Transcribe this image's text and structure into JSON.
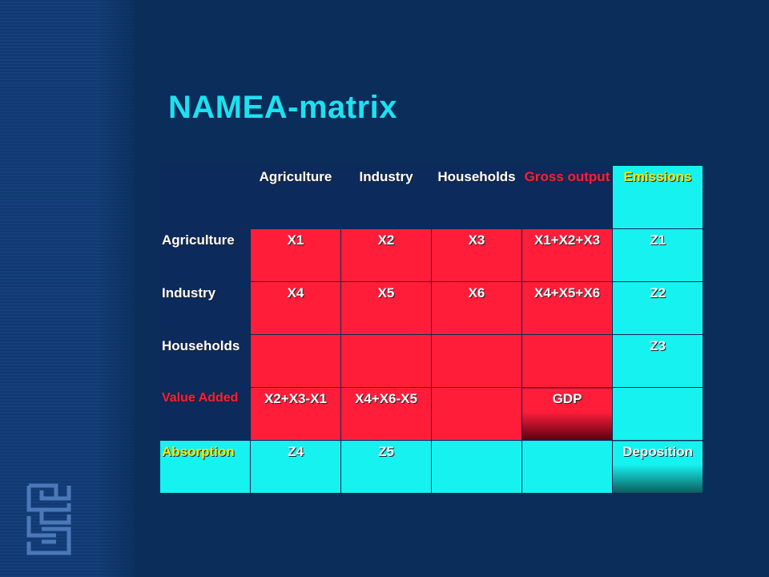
{
  "slide": {
    "title": "NAMEA-matrix"
  },
  "matrix": {
    "header": [
      "",
      "Agriculture",
      "Industry",
      "Households",
      "Gross output",
      "Emissions"
    ],
    "rows": [
      {
        "label": "Agriculture",
        "cells": [
          "X1",
          "X2",
          "X3",
          "X1+X2+X3",
          "Z1"
        ]
      },
      {
        "label": "Industry",
        "cells": [
          "X4",
          "X5",
          "X6",
          "X4+X5+X6",
          "Z2"
        ]
      },
      {
        "label": "Households",
        "cells": [
          "",
          "",
          "",
          "",
          "Z3"
        ]
      },
      {
        "label": "Value Added",
        "cells": [
          "X2+X3-X1",
          "X4+X6-X5",
          "",
          "GDP",
          ""
        ]
      },
      {
        "label": "Absorption",
        "cells": [
          "Z4",
          "Z5",
          "",
          "",
          "Deposition"
        ]
      }
    ]
  },
  "colors": {
    "background": "#0a2d5a",
    "title": "#1ee0f0",
    "red_cell": "#ff1d3a",
    "cyan_cell": "#16f2f0",
    "yellow_text": "#ffe600"
  },
  "logo": {
    "icon": "cbs-logo-icon"
  }
}
